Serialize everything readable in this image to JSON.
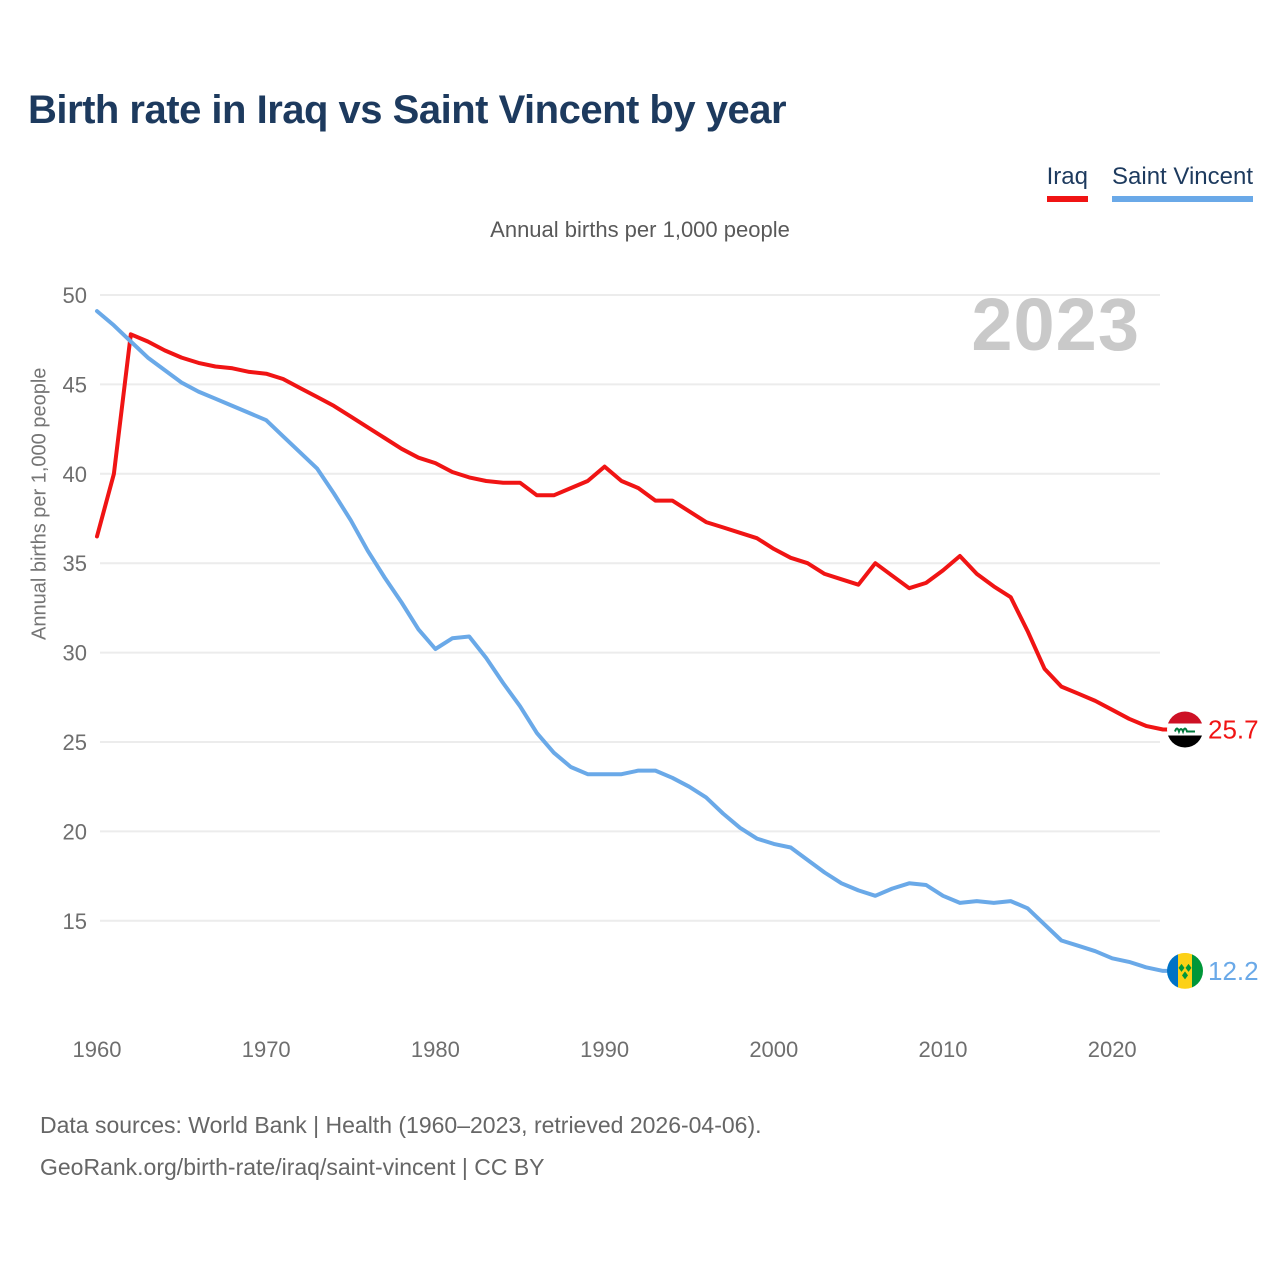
{
  "header": {
    "title": "Birth rate in Iraq vs Saint Vincent by year"
  },
  "subtitle": "Annual births per 1,000 people",
  "watermark": "2023",
  "footer": {
    "line1": "Data sources: World Bank | Health (1960–2023, retrieved 2026-04-06).",
    "line2": "GeoRank.org/birth-rate/iraq/saint-vincent | CC BY"
  },
  "chart_data": {
    "type": "line",
    "title": "Birth rate in Iraq vs Saint Vincent by year",
    "ylabel": "Annual births per 1,000 people",
    "x_start": 1960,
    "x_end": 2023,
    "x_ticks": [
      1960,
      1970,
      1980,
      1990,
      2000,
      2010,
      2020
    ],
    "y_ticks": [
      15,
      20,
      25,
      30,
      35,
      40,
      45,
      50
    ],
    "ylim": [
      12,
      50
    ],
    "grid": true,
    "legend_position": "top-right",
    "grid_color": "#ececec",
    "tick_color": "#6e6e6e",
    "series": [
      {
        "name": "Iraq",
        "color": "#f01414",
        "end_label": "25.7",
        "end_value": 25.7,
        "flag_icon": "iraq-flag-icon",
        "values": [
          36.5,
          40.0,
          47.8,
          47.4,
          46.9,
          46.5,
          46.2,
          46.0,
          45.9,
          45.7,
          45.6,
          45.3,
          44.8,
          44.3,
          43.8,
          43.2,
          42.6,
          42.0,
          41.4,
          40.9,
          40.6,
          40.1,
          39.8,
          39.6,
          39.5,
          39.5,
          38.8,
          38.8,
          39.2,
          39.6,
          40.4,
          39.6,
          39.2,
          38.5,
          38.5,
          37.9,
          37.3,
          37.0,
          36.7,
          36.4,
          35.8,
          35.3,
          35.0,
          34.4,
          34.1,
          33.8,
          35.0,
          34.3,
          33.6,
          33.9,
          34.6,
          35.4,
          34.4,
          33.7,
          33.1,
          31.2,
          29.1,
          28.1,
          27.7,
          27.3,
          26.8,
          26.3,
          25.9,
          25.7
        ]
      },
      {
        "name": "Saint Vincent",
        "color": "#6aa9e8",
        "end_label": "12.2",
        "end_value": 12.2,
        "flag_icon": "saint-vincent-flag-icon",
        "values": [
          49.1,
          48.3,
          47.4,
          46.5,
          45.8,
          45.1,
          44.6,
          44.2,
          43.8,
          43.4,
          43.0,
          42.1,
          41.2,
          40.3,
          38.9,
          37.4,
          35.7,
          34.2,
          32.8,
          31.3,
          30.2,
          30.8,
          30.9,
          29.7,
          28.3,
          27.0,
          25.5,
          24.4,
          23.6,
          23.2,
          23.2,
          23.2,
          23.4,
          23.4,
          23.0,
          22.5,
          21.9,
          21.0,
          20.2,
          19.6,
          19.3,
          19.1,
          18.4,
          17.7,
          17.1,
          16.7,
          16.4,
          16.8,
          17.1,
          17.0,
          16.4,
          16.0,
          16.1,
          16.0,
          16.1,
          15.7,
          14.8,
          13.9,
          13.6,
          13.3,
          12.9,
          12.7,
          12.4,
          12.2
        ]
      }
    ]
  }
}
